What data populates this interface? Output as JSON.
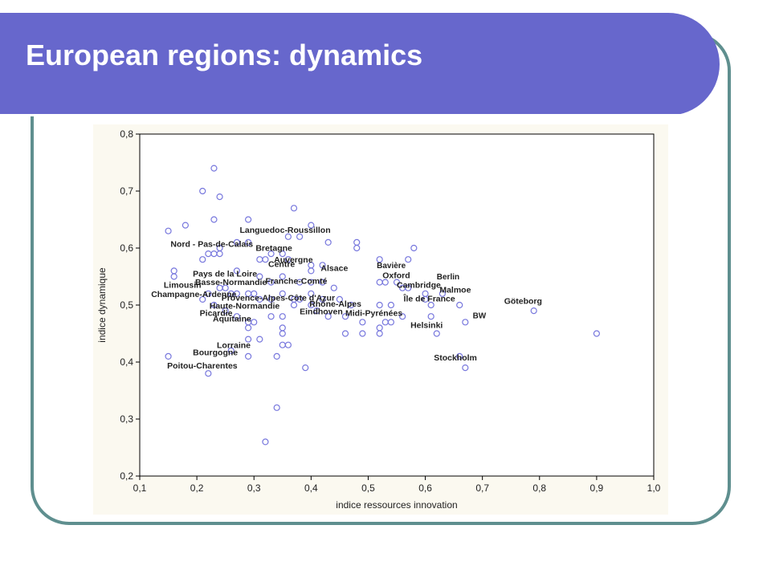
{
  "slide": {
    "title": "European regions: dynamics",
    "accent_color": "#6767cc",
    "frame_color": "#5f8f8f"
  },
  "chart_data": {
    "type": "scatter",
    "xlabel": "indice ressources innovation",
    "ylabel": "indice dynamique",
    "xlim": [
      0.1,
      1.0
    ],
    "ylim": [
      0.2,
      0.8
    ],
    "xticks": [
      "0,1",
      "0,2",
      "0,3",
      "0,4",
      "0,5",
      "0,6",
      "0,7",
      "0,8",
      "0,9",
      "1,0"
    ],
    "yticks": [
      "0,2",
      "0,3",
      "0,4",
      "0,5",
      "0,6",
      "0,7",
      "0,8"
    ],
    "grid": false,
    "background_color": "#fbf9f0",
    "marker_color": "#7777dd",
    "points": [
      [
        0.15,
        0.63
      ],
      [
        0.18,
        0.64
      ],
      [
        0.21,
        0.7
      ],
      [
        0.23,
        0.74
      ],
      [
        0.24,
        0.69
      ],
      [
        0.23,
        0.65
      ],
      [
        0.29,
        0.65
      ],
      [
        0.37,
        0.67
      ],
      [
        0.4,
        0.64
      ],
      [
        0.38,
        0.62
      ],
      [
        0.43,
        0.61
      ],
      [
        0.48,
        0.61
      ],
      [
        0.48,
        0.6
      ],
      [
        0.52,
        0.58
      ],
      [
        0.57,
        0.58
      ],
      [
        0.58,
        0.6
      ],
      [
        0.16,
        0.56
      ],
      [
        0.16,
        0.55
      ],
      [
        0.21,
        0.58
      ],
      [
        0.22,
        0.59
      ],
      [
        0.23,
        0.59
      ],
      [
        0.24,
        0.6
      ],
      [
        0.24,
        0.59
      ],
      [
        0.27,
        0.61
      ],
      [
        0.29,
        0.61
      ],
      [
        0.31,
        0.58
      ],
      [
        0.32,
        0.58
      ],
      [
        0.33,
        0.59
      ],
      [
        0.35,
        0.59
      ],
      [
        0.36,
        0.62
      ],
      [
        0.36,
        0.58
      ],
      [
        0.4,
        0.57
      ],
      [
        0.4,
        0.56
      ],
      [
        0.42,
        0.57
      ],
      [
        0.27,
        0.56
      ],
      [
        0.31,
        0.55
      ],
      [
        0.33,
        0.54
      ],
      [
        0.35,
        0.55
      ],
      [
        0.38,
        0.54
      ],
      [
        0.4,
        0.54
      ],
      [
        0.42,
        0.54
      ],
      [
        0.44,
        0.53
      ],
      [
        0.52,
        0.54
      ],
      [
        0.53,
        0.54
      ],
      [
        0.55,
        0.54
      ],
      [
        0.56,
        0.53
      ],
      [
        0.57,
        0.53
      ],
      [
        0.6,
        0.52
      ],
      [
        0.63,
        0.52
      ],
      [
        0.21,
        0.51
      ],
      [
        0.22,
        0.52
      ],
      [
        0.24,
        0.53
      ],
      [
        0.25,
        0.53
      ],
      [
        0.26,
        0.52
      ],
      [
        0.27,
        0.52
      ],
      [
        0.29,
        0.52
      ],
      [
        0.3,
        0.52
      ],
      [
        0.31,
        0.51
      ],
      [
        0.33,
        0.51
      ],
      [
        0.35,
        0.52
      ],
      [
        0.37,
        0.51
      ],
      [
        0.38,
        0.51
      ],
      [
        0.4,
        0.52
      ],
      [
        0.42,
        0.51
      ],
      [
        0.45,
        0.51
      ],
      [
        0.47,
        0.5
      ],
      [
        0.52,
        0.5
      ],
      [
        0.54,
        0.5
      ],
      [
        0.6,
        0.51
      ],
      [
        0.61,
        0.5
      ],
      [
        0.66,
        0.5
      ],
      [
        0.23,
        0.5
      ],
      [
        0.25,
        0.49
      ],
      [
        0.27,
        0.48
      ],
      [
        0.29,
        0.47
      ],
      [
        0.3,
        0.47
      ],
      [
        0.33,
        0.48
      ],
      [
        0.35,
        0.48
      ],
      [
        0.37,
        0.5
      ],
      [
        0.4,
        0.5
      ],
      [
        0.41,
        0.49
      ],
      [
        0.43,
        0.48
      ],
      [
        0.46,
        0.48
      ],
      [
        0.49,
        0.47
      ],
      [
        0.52,
        0.46
      ],
      [
        0.53,
        0.47
      ],
      [
        0.54,
        0.47
      ],
      [
        0.56,
        0.48
      ],
      [
        0.61,
        0.48
      ],
      [
        0.67,
        0.47
      ],
      [
        0.79,
        0.49
      ],
      [
        0.29,
        0.46
      ],
      [
        0.29,
        0.44
      ],
      [
        0.31,
        0.44
      ],
      [
        0.35,
        0.46
      ],
      [
        0.35,
        0.45
      ],
      [
        0.46,
        0.45
      ],
      [
        0.49,
        0.45
      ],
      [
        0.52,
        0.45
      ],
      [
        0.62,
        0.45
      ],
      [
        0.9,
        0.45
      ],
      [
        0.15,
        0.41
      ],
      [
        0.26,
        0.42
      ],
      [
        0.29,
        0.41
      ],
      [
        0.34,
        0.41
      ],
      [
        0.35,
        0.43
      ],
      [
        0.36,
        0.43
      ],
      [
        0.39,
        0.39
      ],
      [
        0.22,
        0.38
      ],
      [
        0.66,
        0.41
      ],
      [
        0.67,
        0.39
      ],
      [
        0.34,
        0.32
      ],
      [
        0.32,
        0.26
      ]
    ],
    "labels": [
      {
        "text": "Languedoc-Roussillon",
        "x": 0.275,
        "y": 0.627,
        "size": "large"
      },
      {
        "text": "Nord - Pas-de-Calais",
        "x": 0.154,
        "y": 0.602,
        "size": "large"
      },
      {
        "text": "Bretagne",
        "x": 0.303,
        "y": 0.595,
        "size": "large"
      },
      {
        "text": "Auvergne",
        "x": 0.335,
        "y": 0.575,
        "size": "large"
      },
      {
        "text": "Centre",
        "x": 0.325,
        "y": 0.567,
        "size": "large"
      },
      {
        "text": "Alsace",
        "x": 0.417,
        "y": 0.56,
        "size": "large"
      },
      {
        "text": "Bavière",
        "x": 0.515,
        "y": 0.565,
        "size": "small"
      },
      {
        "text": "Pays de la Loire",
        "x": 0.193,
        "y": 0.55,
        "size": "large"
      },
      {
        "text": "Oxford",
        "x": 0.525,
        "y": 0.547,
        "size": "large"
      },
      {
        "text": "Berlin",
        "x": 0.62,
        "y": 0.545,
        "size": "small"
      },
      {
        "text": "Basse-Normandie",
        "x": 0.197,
        "y": 0.535,
        "size": "large"
      },
      {
        "text": "Franche-Comté",
        "x": 0.32,
        "y": 0.537,
        "size": "large"
      },
      {
        "text": "Limousin",
        "x": 0.142,
        "y": 0.53,
        "size": "large"
      },
      {
        "text": "Cambridge",
        "x": 0.55,
        "y": 0.53,
        "size": "large"
      },
      {
        "text": "Malmoe",
        "x": 0.625,
        "y": 0.522,
        "size": "large"
      },
      {
        "text": "Champagne-Ardenne",
        "x": 0.12,
        "y": 0.514,
        "size": "large"
      },
      {
        "text": "Provence-Alpes-Côte d'Azur",
        "x": 0.243,
        "y": 0.508,
        "size": "large"
      },
      {
        "text": "Île de France",
        "x": 0.562,
        "y": 0.506,
        "size": "large"
      },
      {
        "text": "Göteborg",
        "x": 0.738,
        "y": 0.502,
        "size": "large"
      },
      {
        "text": "Haute-Normandie",
        "x": 0.222,
        "y": 0.494,
        "size": "large"
      },
      {
        "text": "Rhône-Alpes",
        "x": 0.397,
        "y": 0.497,
        "size": "large"
      },
      {
        "text": "Picardie",
        "x": 0.205,
        "y": 0.481,
        "size": "large"
      },
      {
        "text": "Eindhoven",
        "x": 0.38,
        "y": 0.484,
        "size": "large"
      },
      {
        "text": "Midi-Pyrénées",
        "x": 0.46,
        "y": 0.481,
        "size": "large"
      },
      {
        "text": "BW",
        "x": 0.683,
        "y": 0.477,
        "size": "small"
      },
      {
        "text": "Aquitaine",
        "x": 0.228,
        "y": 0.471,
        "size": "large"
      },
      {
        "text": "Helsinki",
        "x": 0.574,
        "y": 0.46,
        "size": "large"
      },
      {
        "text": "Lorraine",
        "x": 0.235,
        "y": 0.425,
        "size": "large"
      },
      {
        "text": "Bourgogne",
        "x": 0.193,
        "y": 0.412,
        "size": "large"
      },
      {
        "text": "Stockholm",
        "x": 0.615,
        "y": 0.403,
        "size": "large"
      },
      {
        "text": "Poitou-Charentes",
        "x": 0.148,
        "y": 0.389,
        "size": "large"
      }
    ]
  }
}
